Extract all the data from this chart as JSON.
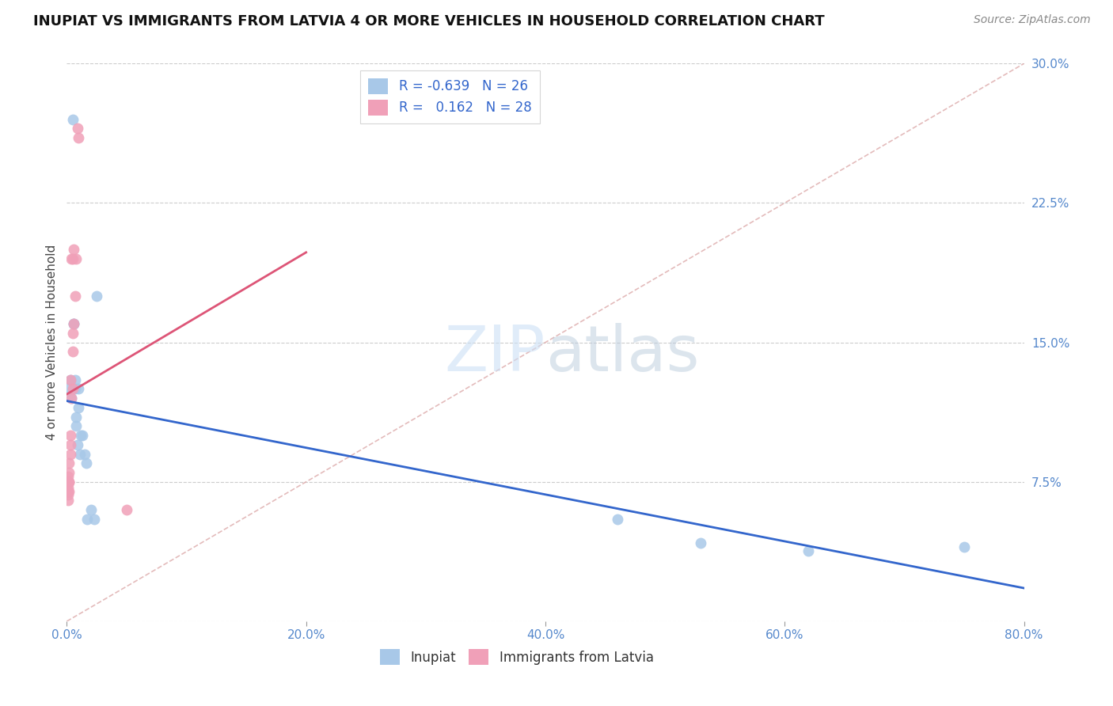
{
  "title": "INUPIAT VS IMMIGRANTS FROM LATVIA 4 OR MORE VEHICLES IN HOUSEHOLD CORRELATION CHART",
  "source": "Source: ZipAtlas.com",
  "ylabel": "4 or more Vehicles in Household",
  "legend_labels": [
    "Inupiat",
    "Immigrants from Latvia"
  ],
  "inupiat_color": "#a8c8e8",
  "latvia_color": "#f0a0b8",
  "inupiat_line_color": "#3366cc",
  "latvia_line_color": "#dd5577",
  "inupiat_R": -0.639,
  "inupiat_N": 26,
  "latvia_R": 0.162,
  "latvia_N": 28,
  "background_color": "#ffffff",
  "grid_color": "#cccccc",
  "xlim": [
    0.0,
    0.8
  ],
  "ylim": [
    0.0,
    0.3
  ],
  "xticks": [
    0.0,
    0.2,
    0.4,
    0.6,
    0.8
  ],
  "yticks": [
    0.0,
    0.075,
    0.15,
    0.225,
    0.3
  ],
  "inupiat_x": [
    0.001,
    0.003,
    0.004,
    0.005,
    0.006,
    0.006,
    0.007,
    0.007,
    0.008,
    0.008,
    0.009,
    0.01,
    0.01,
    0.011,
    0.012,
    0.013,
    0.015,
    0.016,
    0.017,
    0.02,
    0.023,
    0.025,
    0.46,
    0.53,
    0.62,
    0.75
  ],
  "inupiat_y": [
    0.125,
    0.13,
    0.12,
    0.27,
    0.16,
    0.16,
    0.13,
    0.125,
    0.11,
    0.105,
    0.095,
    0.125,
    0.115,
    0.09,
    0.1,
    0.1,
    0.09,
    0.085,
    0.055,
    0.06,
    0.055,
    0.175,
    0.055,
    0.042,
    0.038,
    0.04
  ],
  "latvia_x": [
    0.001,
    0.001,
    0.001,
    0.001,
    0.001,
    0.001,
    0.002,
    0.002,
    0.002,
    0.002,
    0.002,
    0.003,
    0.003,
    0.003,
    0.003,
    0.004,
    0.004,
    0.005,
    0.005,
    0.005,
    0.005,
    0.006,
    0.006,
    0.007,
    0.008,
    0.009,
    0.01,
    0.05
  ],
  "latvia_y": [
    0.065,
    0.068,
    0.07,
    0.072,
    0.075,
    0.078,
    0.07,
    0.075,
    0.075,
    0.08,
    0.085,
    0.09,
    0.095,
    0.1,
    0.13,
    0.12,
    0.195,
    0.125,
    0.145,
    0.155,
    0.195,
    0.16,
    0.2,
    0.175,
    0.195,
    0.265,
    0.26,
    0.06
  ],
  "diag_line_color": "#ddaaaa",
  "title_fontsize": 13,
  "source_fontsize": 10,
  "tick_fontsize": 11,
  "ylabel_fontsize": 11,
  "legend_fontsize": 12,
  "marker_size": 100,
  "line_width": 2.0
}
